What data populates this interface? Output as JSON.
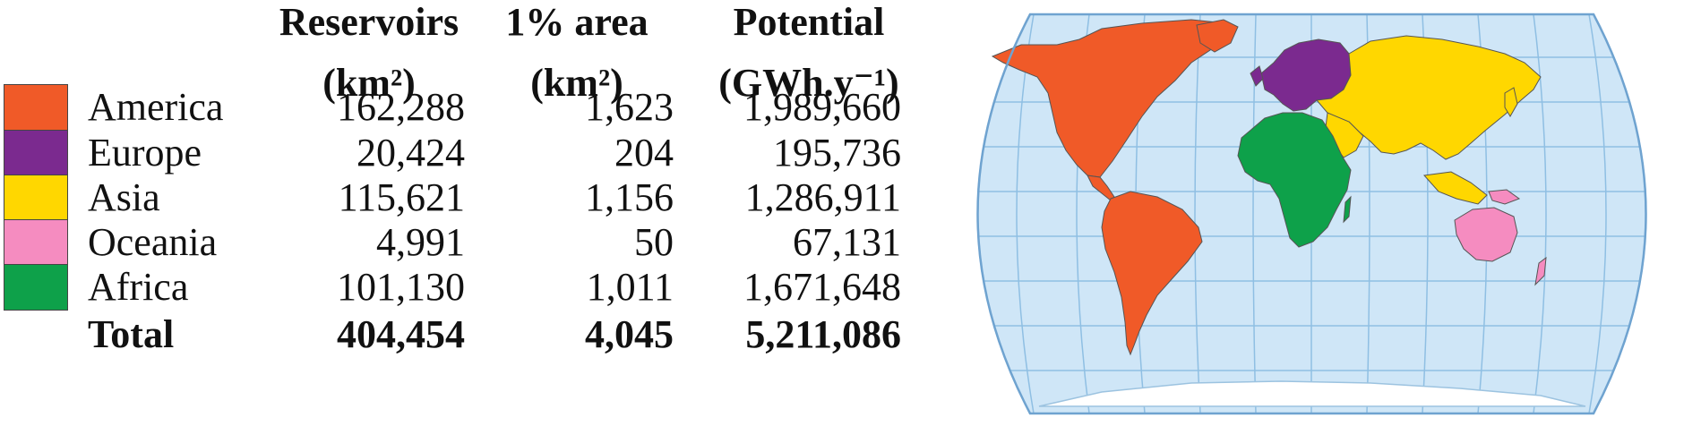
{
  "table": {
    "headers": {
      "reservoirs": {
        "line1": "Reservoirs",
        "line2": "(km²)"
      },
      "area": {
        "line1": "1% area",
        "line2": "(km²)"
      },
      "potential": {
        "line1": "Potential",
        "line2": "(GWh.y⁻¹)"
      }
    },
    "rows": [
      {
        "name": "America",
        "color": "#f05a28",
        "reservoirs": "162,288",
        "area": "1,623",
        "potential": "1,989,660"
      },
      {
        "name": "Europe",
        "color": "#7b2a8f",
        "reservoirs": "20,424",
        "area": "204",
        "potential": "195,736"
      },
      {
        "name": "Asia",
        "color": "#ffd700",
        "reservoirs": "115,621",
        "area": "1,156",
        "potential": "1,286,911"
      },
      {
        "name": "Oceania",
        "color": "#f58cc0",
        "reservoirs": "4,991",
        "area": "50",
        "potential": "67,131"
      },
      {
        "name": "Africa",
        "color": "#0ea14a",
        "reservoirs": "101,130",
        "area": "1,011",
        "potential": "1,671,648"
      }
    ],
    "total": {
      "name": "Total",
      "reservoirs": "404,454",
      "area": "4,045",
      "potential": "5,211,086"
    }
  },
  "map": {
    "ocean_color": "#cfe6f7",
    "grid_color": "#8fbfe3",
    "antarctica_color": "#ffffff",
    "regions": [
      {
        "name": "America",
        "color": "#f05a28"
      },
      {
        "name": "Europe",
        "color": "#7b2a8f"
      },
      {
        "name": "Asia",
        "color": "#ffd700"
      },
      {
        "name": "Oceania",
        "color": "#f58cc0"
      },
      {
        "name": "Africa",
        "color": "#0ea14a"
      }
    ]
  }
}
